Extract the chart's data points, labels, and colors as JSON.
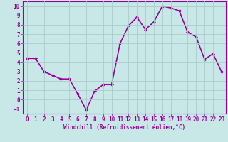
{
  "x": [
    0,
    1,
    2,
    3,
    4,
    5,
    6,
    7,
    8,
    9,
    10,
    11,
    12,
    13,
    14,
    15,
    16,
    17,
    18,
    19,
    20,
    21,
    22,
    23
  ],
  "y": [
    4.4,
    4.4,
    3.0,
    2.6,
    2.2,
    2.2,
    0.6,
    -1.1,
    0.9,
    1.6,
    1.6,
    6.0,
    7.9,
    8.8,
    7.5,
    8.3,
    10.0,
    9.8,
    9.5,
    7.2,
    6.7,
    4.3,
    4.9,
    3.0
  ],
  "line_color": "#990099",
  "marker": "D",
  "marker_size": 2,
  "bg_color": "#c8e8e8",
  "grid_color": "#aacccc",
  "xlabel": "Windchill (Refroidissement éolien,°C)",
  "xlabel_color": "#990099",
  "tick_color": "#990099",
  "ylim": [
    -1.5,
    10.5
  ],
  "xlim": [
    -0.5,
    23.5
  ],
  "yticks": [
    -1,
    0,
    1,
    2,
    3,
    4,
    5,
    6,
    7,
    8,
    9,
    10
  ],
  "xticks": [
    0,
    1,
    2,
    3,
    4,
    5,
    6,
    7,
    8,
    9,
    10,
    11,
    12,
    13,
    14,
    15,
    16,
    17,
    18,
    19,
    20,
    21,
    22,
    23
  ],
  "line_width": 1.2,
  "spine_color": "#990099",
  "title_color": "#990099",
  "label_fontsize": 5.5,
  "tick_fontsize": 5.5
}
